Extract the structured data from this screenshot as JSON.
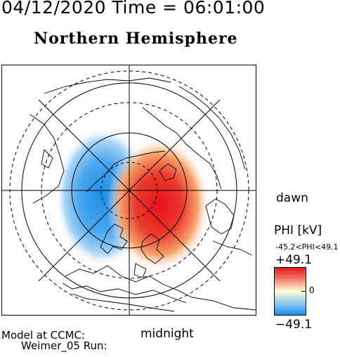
{
  "header": {
    "title_line": "04/12/2020 Time = 06:01:00",
    "hemisphere": "Northern Hemisphere"
  },
  "labels": {
    "dawn": "dawn",
    "midnight": "midnight",
    "model": "Model at CCMC:",
    "run": "Weimer_05 Run:"
  },
  "colorbar": {
    "title": "PHI [kV]",
    "range_text": "-45.2<PHI<49.1",
    "max_label": "+49.1",
    "zero_label": "0",
    "min_label": "−49.1",
    "colors": {
      "positive": "#e41a1c",
      "zero": "#ffffd9",
      "negative": "#1a8fe8"
    }
  },
  "potential": {
    "min_kv": -45.2,
    "max_kv": 49.1,
    "dawn_cell": "positive",
    "dusk_cell": "negative"
  }
}
